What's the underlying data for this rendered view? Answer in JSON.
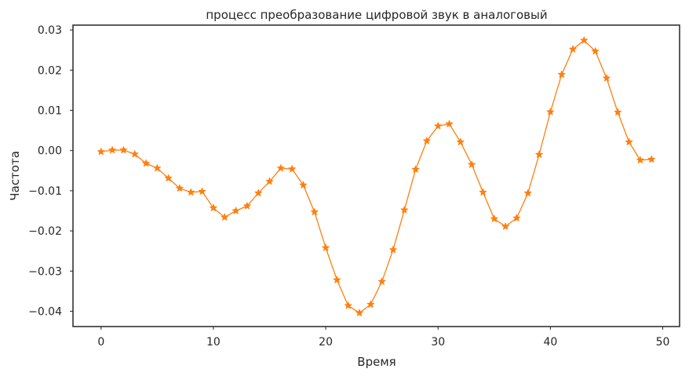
{
  "chart_data": {
    "type": "line",
    "title": "процесс преобразование цифровой звук в аналоговый",
    "xlabel": "Время",
    "ylabel": "Частота",
    "xlim": [
      -2.5,
      51.5
    ],
    "ylim": [
      -0.0438,
      0.0312
    ],
    "xticks": [
      0,
      10,
      20,
      30,
      40,
      50
    ],
    "xtick_labels": [
      "0",
      "10",
      "20",
      "30",
      "40",
      "50"
    ],
    "yticks": [
      0.03,
      0.02,
      0.01,
      0.0,
      -0.01,
      -0.02,
      -0.03,
      -0.04
    ],
    "ytick_labels": [
      "0.03",
      "0.02",
      "0.01",
      "0.00",
      "−0.01",
      "−0.02",
      "−0.03",
      "−0.04"
    ],
    "grid": false,
    "marker": "star",
    "color": "#ff7f0e",
    "series": [
      {
        "x": [
          0,
          1,
          2,
          3,
          4,
          5,
          6,
          7,
          8,
          9,
          10,
          11,
          12,
          13,
          14,
          15,
          16,
          17,
          18,
          19,
          20,
          21,
          22,
          23,
          24,
          25,
          26,
          27,
          28,
          29,
          30,
          31,
          32,
          33,
          34,
          35,
          36,
          37,
          38,
          39,
          40,
          41,
          42,
          43,
          44,
          45,
          46,
          47,
          48,
          49
        ],
        "values": [
          -0.0003,
          0.0001,
          0.0001,
          -0.0009,
          -0.0032,
          -0.0044,
          -0.0069,
          -0.0094,
          -0.0104,
          -0.0102,
          -0.0143,
          -0.0166,
          -0.015,
          -0.0138,
          -0.0106,
          -0.0077,
          -0.0044,
          -0.0046,
          -0.0086,
          -0.0153,
          -0.0242,
          -0.0322,
          -0.0386,
          -0.0404,
          -0.0383,
          -0.0326,
          -0.0247,
          -0.0148,
          -0.0047,
          0.0024,
          0.0061,
          0.0066,
          0.0021,
          -0.0035,
          -0.0104,
          -0.017,
          -0.0189,
          -0.0168,
          -0.0106,
          -0.001,
          0.0096,
          0.0189,
          0.0252,
          0.0274,
          0.0247,
          0.018,
          0.0095,
          0.0021,
          -0.0024,
          -0.0022
        ]
      }
    ]
  }
}
